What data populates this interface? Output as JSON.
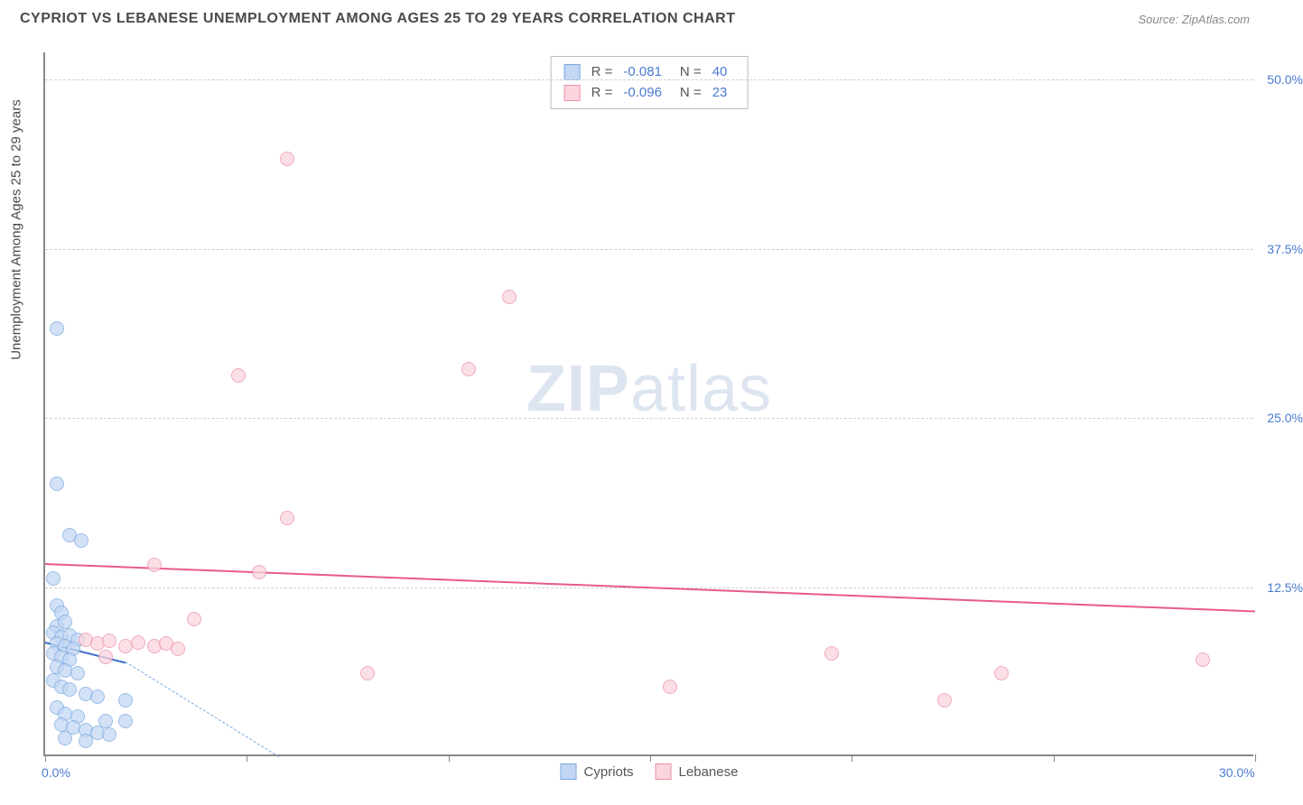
{
  "header": {
    "title": "CYPRIOT VS LEBANESE UNEMPLOYMENT AMONG AGES 25 TO 29 YEARS CORRELATION CHART",
    "source": "Source: ZipAtlas.com"
  },
  "watermark": {
    "bold": "ZIP",
    "light": "atlas"
  },
  "chart": {
    "type": "scatter",
    "background_color": "#ffffff",
    "grid_color": "#d0d0d0",
    "axis_color": "#888888",
    "label_color": "#4a7bd0",
    "y_axis_label": "Unemployment Among Ages 25 to 29 years",
    "xlim": [
      0,
      30
    ],
    "ylim": [
      0,
      52
    ],
    "x_ticks": [
      0,
      5,
      10,
      15,
      20,
      25,
      30
    ],
    "x_tick_labels": {
      "0": "0.0%",
      "30": "30.0%"
    },
    "y_ticks": [
      12.5,
      25.0,
      37.5,
      50.0
    ],
    "y_tick_labels": [
      "12.5%",
      "25.0%",
      "37.5%",
      "50.0%"
    ],
    "marker_radius": 8,
    "marker_stroke_width": 1.5,
    "series": [
      {
        "name": "Cypriots",
        "fill": "#c3d7f4",
        "stroke": "#7aa9e0",
        "line_color": "#3b6fc9",
        "r_value": "-0.081",
        "n_value": "40",
        "trend": {
          "x1": 0,
          "y1": 8.5,
          "x2": 2.0,
          "y2": 7.0
        },
        "trend_dash": {
          "x1": 2.0,
          "y1": 7.0,
          "x2": 5.8,
          "y2": 0
        },
        "points": [
          [
            0.3,
            31.5
          ],
          [
            0.3,
            20.0
          ],
          [
            0.6,
            16.2
          ],
          [
            0.9,
            15.8
          ],
          [
            0.2,
            13.0
          ],
          [
            0.3,
            11.0
          ],
          [
            0.4,
            10.5
          ],
          [
            0.3,
            9.5
          ],
          [
            0.5,
            9.8
          ],
          [
            0.2,
            9.0
          ],
          [
            0.4,
            8.7
          ],
          [
            0.6,
            8.8
          ],
          [
            0.8,
            8.5
          ],
          [
            0.3,
            8.2
          ],
          [
            0.5,
            8.0
          ],
          [
            0.7,
            7.8
          ],
          [
            0.2,
            7.5
          ],
          [
            0.4,
            7.2
          ],
          [
            0.6,
            7.0
          ],
          [
            0.3,
            6.5
          ],
          [
            0.5,
            6.2
          ],
          [
            0.8,
            6.0
          ],
          [
            0.2,
            5.5
          ],
          [
            0.4,
            5.0
          ],
          [
            0.6,
            4.8
          ],
          [
            1.0,
            4.5
          ],
          [
            1.3,
            4.3
          ],
          [
            2.0,
            4.0
          ],
          [
            0.3,
            3.5
          ],
          [
            0.5,
            3.0
          ],
          [
            0.8,
            2.8
          ],
          [
            1.5,
            2.5
          ],
          [
            2.0,
            2.5
          ],
          [
            0.4,
            2.2
          ],
          [
            0.7,
            2.0
          ],
          [
            1.0,
            1.8
          ],
          [
            1.3,
            1.6
          ],
          [
            1.6,
            1.5
          ],
          [
            0.5,
            1.2
          ],
          [
            1.0,
            1.0
          ]
        ]
      },
      {
        "name": "Lebanese",
        "fill": "#fbd5de",
        "stroke": "#ea8fa6",
        "line_color": "#e85a8a",
        "r_value": "-0.096",
        "n_value": "23",
        "trend": {
          "x1": 0,
          "y1": 14.3,
          "x2": 30,
          "y2": 10.8
        },
        "points": [
          [
            6.0,
            44.0
          ],
          [
            11.5,
            33.8
          ],
          [
            10.5,
            28.5
          ],
          [
            4.8,
            28.0
          ],
          [
            6.0,
            17.5
          ],
          [
            2.7,
            14.0
          ],
          [
            5.3,
            13.5
          ],
          [
            3.7,
            10.0
          ],
          [
            1.0,
            8.5
          ],
          [
            1.3,
            8.2
          ],
          [
            1.6,
            8.4
          ],
          [
            2.0,
            8.0
          ],
          [
            2.3,
            8.3
          ],
          [
            2.7,
            8.0
          ],
          [
            3.0,
            8.2
          ],
          [
            3.3,
            7.8
          ],
          [
            1.5,
            7.2
          ],
          [
            8.0,
            6.0
          ],
          [
            15.5,
            5.0
          ],
          [
            19.5,
            7.5
          ],
          [
            22.3,
            4.0
          ],
          [
            23.7,
            6.0
          ],
          [
            28.7,
            7.0
          ]
        ]
      }
    ],
    "legend_bottom": [
      "Cypriots",
      "Lebanese"
    ]
  }
}
